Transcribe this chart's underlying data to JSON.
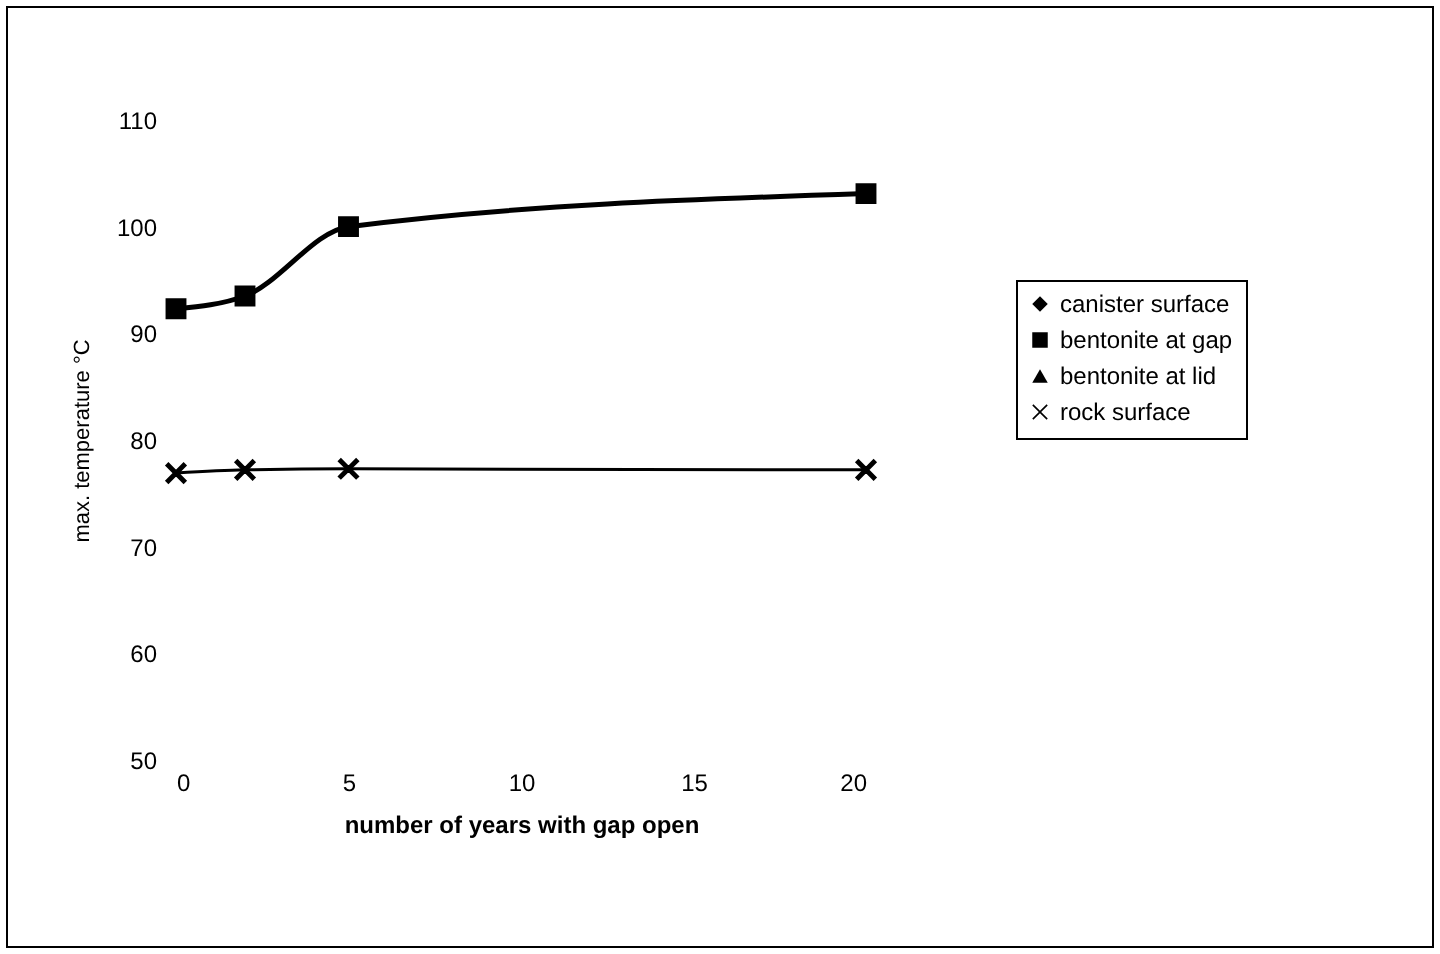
{
  "chart_data": {
    "type": "line",
    "xlabel": "number of years with gap open",
    "ylabel": "max. temperature °C",
    "x": [
      0,
      2,
      5,
      20
    ],
    "xlim": [
      0,
      20
    ],
    "xticks": [
      0,
      5,
      10,
      15,
      20
    ],
    "ylim": [
      50,
      110
    ],
    "yticks": [
      50,
      60,
      70,
      80,
      90,
      100,
      110
    ],
    "grid": false,
    "legend": "right",
    "line_style": "solid",
    "series": [
      {
        "name": "canister surface",
        "color": "#000000",
        "marker": "diamond",
        "values": [
          null,
          null,
          null,
          null
        ]
      },
      {
        "name": "bentonite at gap",
        "color": "#000000",
        "marker": "square",
        "values": [
          92.3,
          93.5,
          100,
          103.1
        ]
      },
      {
        "name": "bentonite at lid",
        "color": "#000000",
        "marker": "triangle",
        "values": [
          null,
          null,
          null,
          null
        ]
      },
      {
        "name": "rock surface",
        "color": "#000000",
        "marker": "cross",
        "values": [
          76.9,
          77.2,
          77.3,
          77.2
        ]
      }
    ]
  }
}
